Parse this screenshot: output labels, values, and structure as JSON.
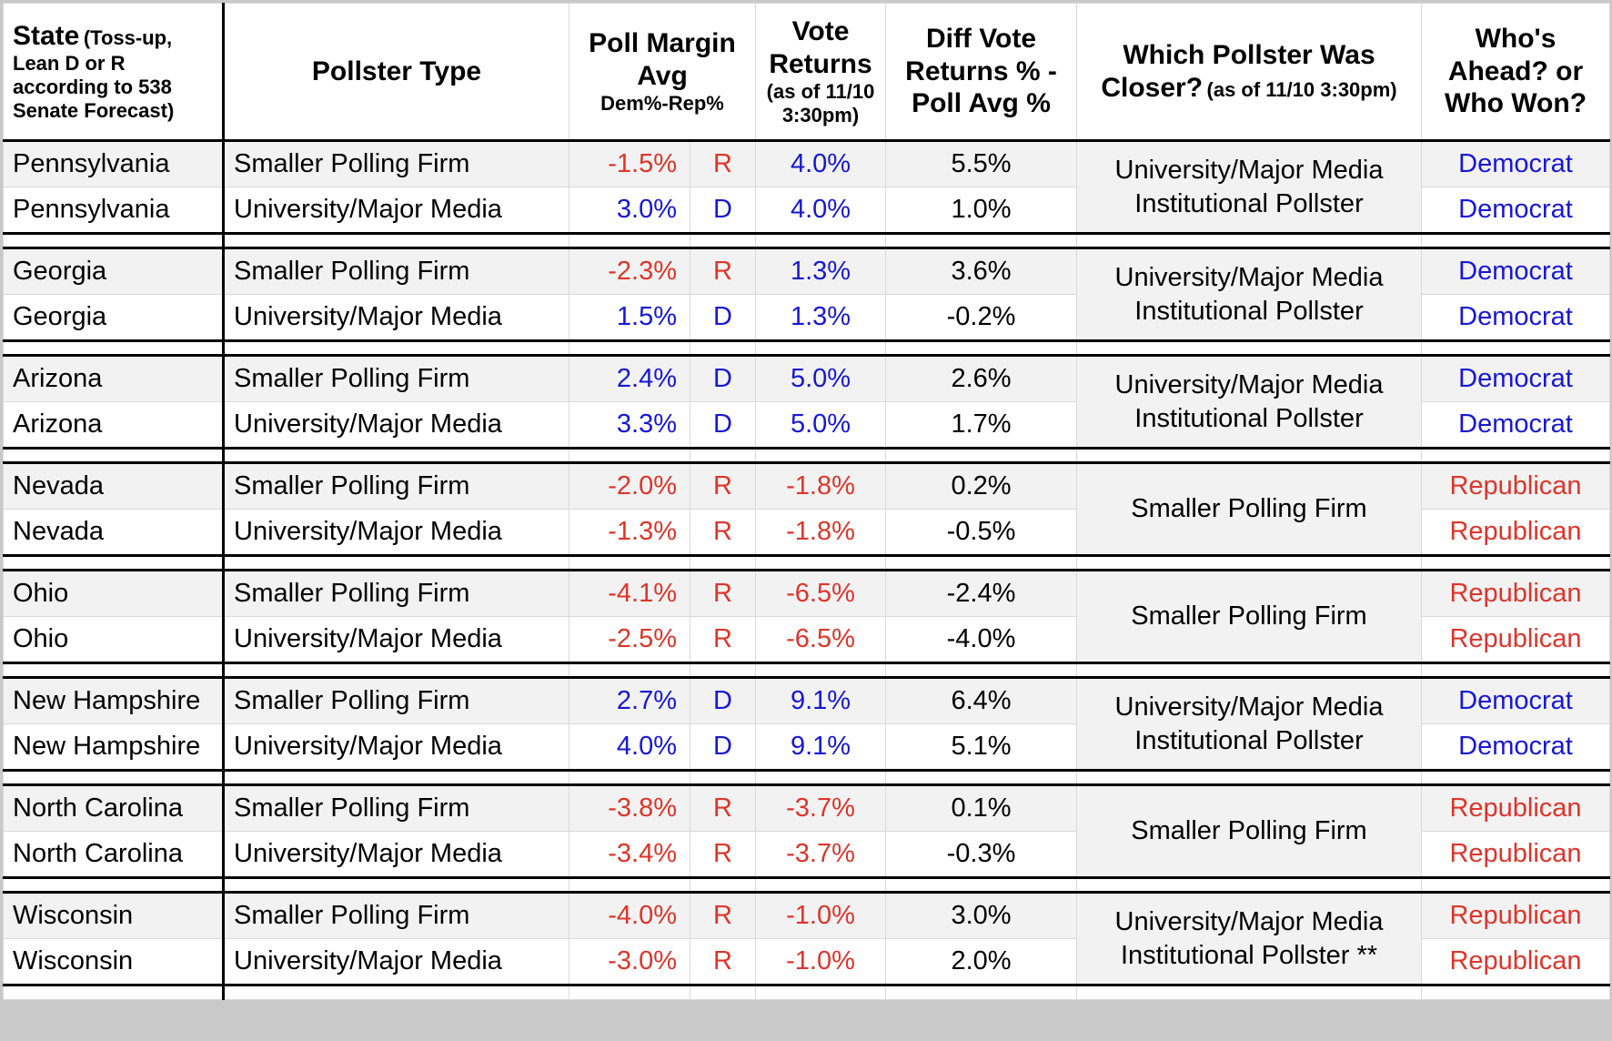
{
  "colors": {
    "democrat_text": "#1717d4",
    "republican_text": "#dc352a",
    "alt_row_bg": "#f2f2f2",
    "gridline": "#d9d9d9",
    "group_border": "#000000"
  },
  "header": {
    "state_title": "State",
    "state_sub": "(Toss-up, Lean D or R according to 538 Senate Forecast)",
    "pollster_type": "Pollster Type",
    "poll_margin_title": "Poll Margin Avg",
    "poll_margin_sub": "Dem%-Rep%",
    "vote_returns_title": "Vote Returns",
    "vote_returns_sub": "(as of 11/10 3:30pm)",
    "diff_title": "Diff Vote Returns % - Poll Avg %",
    "closer_title": "Which Pollster Was Closer?",
    "closer_sub": "(as of 11/10 3:30pm)",
    "who_title": "Who's Ahead? or Who Won?"
  },
  "groups": [
    {
      "closer": "University/Major Media Institutional Pollster",
      "winners": [
        "Democrat",
        "Democrat"
      ],
      "rows": [
        {
          "state": "Pennsylvania",
          "pollster": "Smaller Polling Firm",
          "margin": "-1.5%",
          "party": "R",
          "vote": "4.0%",
          "diff": "5.5%"
        },
        {
          "state": "Pennsylvania",
          "pollster": "University/Major Media",
          "margin": "3.0%",
          "party": "D",
          "vote": "4.0%",
          "diff": "1.0%"
        }
      ]
    },
    {
      "closer": "University/Major Media Institutional Pollster",
      "winners": [
        "Democrat",
        "Democrat"
      ],
      "rows": [
        {
          "state": "Georgia",
          "pollster": "Smaller Polling Firm",
          "margin": "-2.3%",
          "party": "R",
          "vote": "1.3%",
          "diff": "3.6%"
        },
        {
          "state": "Georgia",
          "pollster": "University/Major Media",
          "margin": "1.5%",
          "party": "D",
          "vote": "1.3%",
          "diff": "-0.2%"
        }
      ]
    },
    {
      "closer": "University/Major Media Institutional Pollster",
      "winners": [
        "Democrat",
        "Democrat"
      ],
      "rows": [
        {
          "state": "Arizona",
          "pollster": "Smaller Polling Firm",
          "margin": "2.4%",
          "party": "D",
          "vote": "5.0%",
          "diff": "2.6%"
        },
        {
          "state": "Arizona",
          "pollster": "University/Major Media",
          "margin": "3.3%",
          "party": "D",
          "vote": "5.0%",
          "diff": "1.7%"
        }
      ]
    },
    {
      "closer": "Smaller Polling Firm",
      "winners": [
        "Republican",
        "Republican"
      ],
      "rows": [
        {
          "state": "Nevada",
          "pollster": "Smaller Polling Firm",
          "margin": "-2.0%",
          "party": "R",
          "vote": "-1.8%",
          "diff": "0.2%"
        },
        {
          "state": "Nevada",
          "pollster": "University/Major Media",
          "margin": "-1.3%",
          "party": "R",
          "vote": "-1.8%",
          "diff": "-0.5%"
        }
      ]
    },
    {
      "closer": "Smaller Polling Firm",
      "winners": [
        "Republican",
        "Republican"
      ],
      "rows": [
        {
          "state": "Ohio",
          "pollster": "Smaller Polling Firm",
          "margin": "-4.1%",
          "party": "R",
          "vote": "-6.5%",
          "diff": "-2.4%"
        },
        {
          "state": "Ohio",
          "pollster": "University/Major Media",
          "margin": "-2.5%",
          "party": "R",
          "vote": "-6.5%",
          "diff": "-4.0%"
        }
      ]
    },
    {
      "closer": "University/Major Media Institutional Pollster",
      "winners": [
        "Democrat",
        "Democrat"
      ],
      "rows": [
        {
          "state": "New Hampshire",
          "pollster": "Smaller Polling Firm",
          "margin": "2.7%",
          "party": "D",
          "vote": "9.1%",
          "diff": "6.4%"
        },
        {
          "state": "New Hampshire",
          "pollster": "University/Major Media",
          "margin": "4.0%",
          "party": "D",
          "vote": "9.1%",
          "diff": "5.1%"
        }
      ]
    },
    {
      "closer": "Smaller Polling Firm",
      "winners": [
        "Republican",
        "Republican"
      ],
      "rows": [
        {
          "state": "North Carolina",
          "pollster": "Smaller Polling Firm",
          "margin": "-3.8%",
          "party": "R",
          "vote": "-3.7%",
          "diff": "0.1%"
        },
        {
          "state": "North Carolina",
          "pollster": "University/Major Media",
          "margin": "-3.4%",
          "party": "R",
          "vote": "-3.7%",
          "diff": "-0.3%"
        }
      ]
    },
    {
      "closer": "University/Major Media Institutional Pollster **",
      "winners": [
        "Republican",
        "Republican"
      ],
      "rows": [
        {
          "state": "Wisconsin",
          "pollster": "Smaller Polling Firm",
          "margin": "-4.0%",
          "party": "R",
          "vote": "-1.0%",
          "diff": "3.0%"
        },
        {
          "state": "Wisconsin",
          "pollster": "University/Major Media",
          "margin": "-3.0%",
          "party": "R",
          "vote": "-1.0%",
          "diff": "2.0%"
        }
      ]
    }
  ]
}
